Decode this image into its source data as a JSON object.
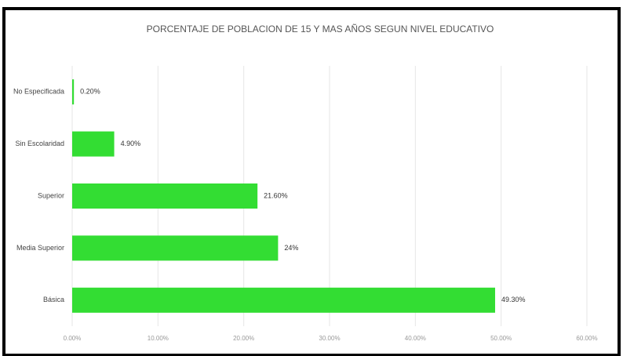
{
  "chart_data": {
    "type": "hbar",
    "title": "PORCENTAJE DE POBLACION DE 15 Y MAS AÑOS SEGUN NIVEL EDUCATIVO",
    "categories": [
      "No Especificada",
      "Sin Escolaridad",
      "Superior",
      "Media Superior",
      "Básica"
    ],
    "values": [
      0.2,
      4.9,
      21.6,
      24,
      49.3
    ],
    "value_labels": [
      "0.20%",
      "4.90%",
      "21.60%",
      "24%",
      "49.30%"
    ],
    "color": "#33dd33",
    "xlim": [
      0,
      60
    ],
    "xticks": [
      {
        "value": 0,
        "label": "0.00%"
      },
      {
        "value": 10,
        "label": "10.00%"
      },
      {
        "value": 20,
        "label": "20.00%"
      },
      {
        "value": 30,
        "label": "30.00%"
      },
      {
        "value": 40,
        "label": "40.00%"
      },
      {
        "value": 50,
        "label": "50.00%"
      },
      {
        "value": 60,
        "label": "60.00%"
      }
    ],
    "grid": true
  }
}
